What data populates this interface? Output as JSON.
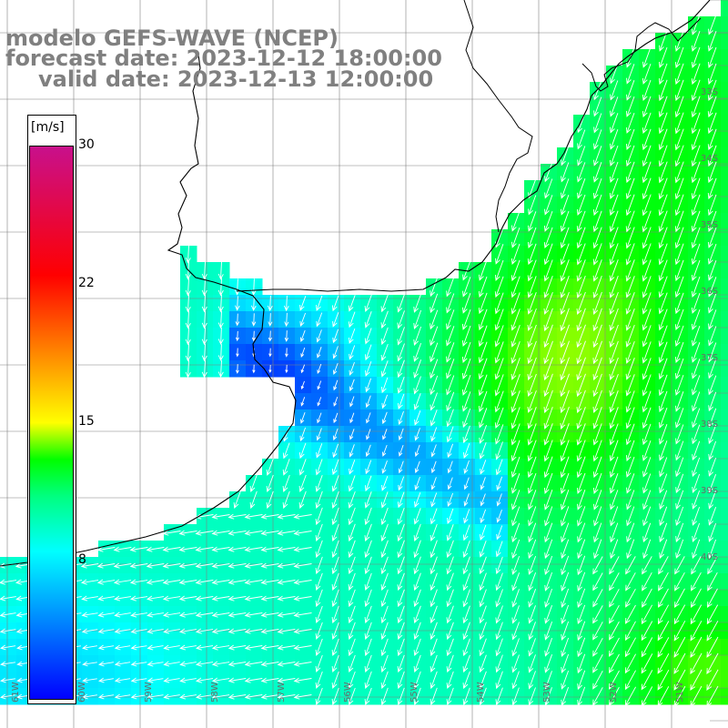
{
  "title": {
    "line1": "modelo GEFS-WAVE (NCEP)",
    "line2": "forecast date: 2023-12-12 18:00:00",
    "line3": "valid date: 2023-12-13 12:00:00"
  },
  "colorbar": {
    "unit": "[m/s]",
    "ticks": [
      "30",
      "22",
      "15",
      "8"
    ],
    "min": 0,
    "max": 30,
    "stops": [
      {
        "v": 0,
        "color": "#0000ff"
      },
      {
        "v": 8,
        "color": "#00ffff"
      },
      {
        "v": 11,
        "color": "#00ff80"
      },
      {
        "v": 13,
        "color": "#00ff00"
      },
      {
        "v": 15,
        "color": "#ffff00"
      },
      {
        "v": 19,
        "color": "#ff8000"
      },
      {
        "v": 23,
        "color": "#ff0000"
      },
      {
        "v": 30,
        "color": "#c8108c"
      }
    ]
  },
  "map": {
    "variable": "wind speed and direction",
    "lon_labels": [
      "61W",
      "60W",
      "59W",
      "58W",
      "57W",
      "56W",
      "55W",
      "54W",
      "53W",
      "52W",
      "51W"
    ],
    "lat_labels": [
      "33S",
      "34S",
      "35S",
      "36S",
      "37S",
      "38S",
      "39S",
      "40S"
    ],
    "colors": {
      "land": "#ffffff",
      "grid": "#808080",
      "coast": "#000000",
      "arrow": "#ffffff"
    }
  }
}
